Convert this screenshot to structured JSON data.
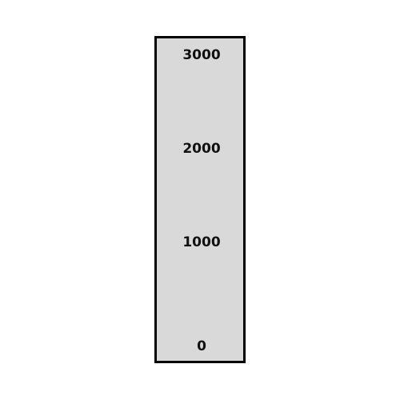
{
  "scale": {
    "labels": [
      "3000",
      "2000",
      "1000",
      "0"
    ],
    "fill_color": "#d9d9d9",
    "border_color": "#000000"
  }
}
